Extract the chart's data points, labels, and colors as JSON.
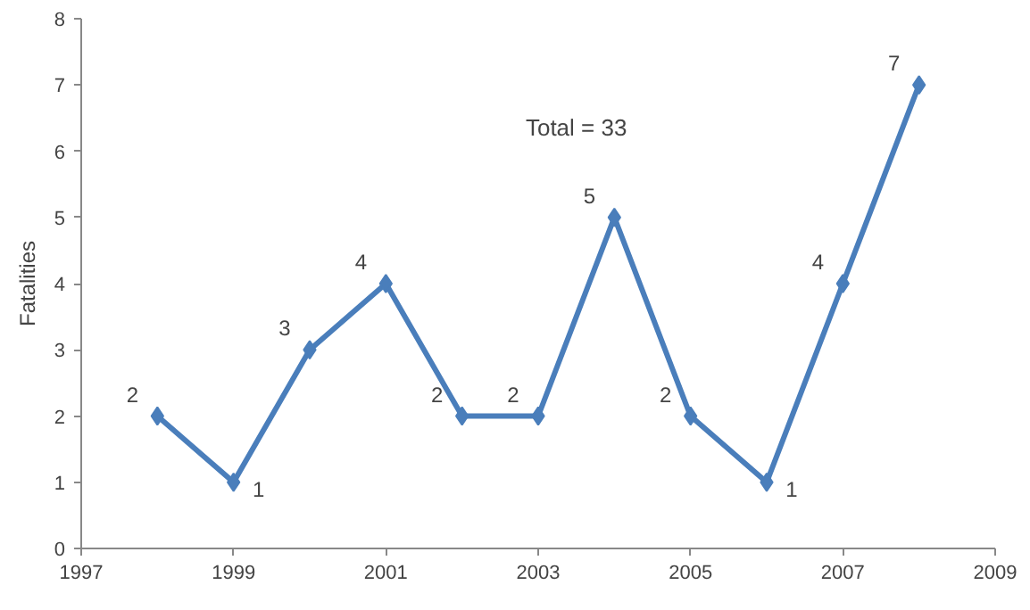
{
  "chart_data": {
    "type": "line",
    "ylabel": "Fatalities",
    "x": [
      1998,
      1999,
      2000,
      2001,
      2002,
      2003,
      2004,
      2005,
      2006,
      2007,
      2008
    ],
    "series": [
      {
        "color": "#4a7ebb",
        "values": [
          2,
          1,
          3,
          4,
          2,
          2,
          5,
          2,
          1,
          4,
          7
        ]
      }
    ],
    "xlim": [
      1997,
      2009
    ],
    "xticks": [
      1997,
      1999,
      2001,
      2003,
      2005,
      2007,
      2009
    ],
    "ylim": [
      0,
      8
    ],
    "yticks": [
      0,
      1,
      2,
      3,
      4,
      5,
      6,
      7,
      8
    ],
    "grid": false,
    "marker": "diamond",
    "line_style": "solid",
    "data_labels": true,
    "annotations": [
      "Total = 33"
    ]
  }
}
